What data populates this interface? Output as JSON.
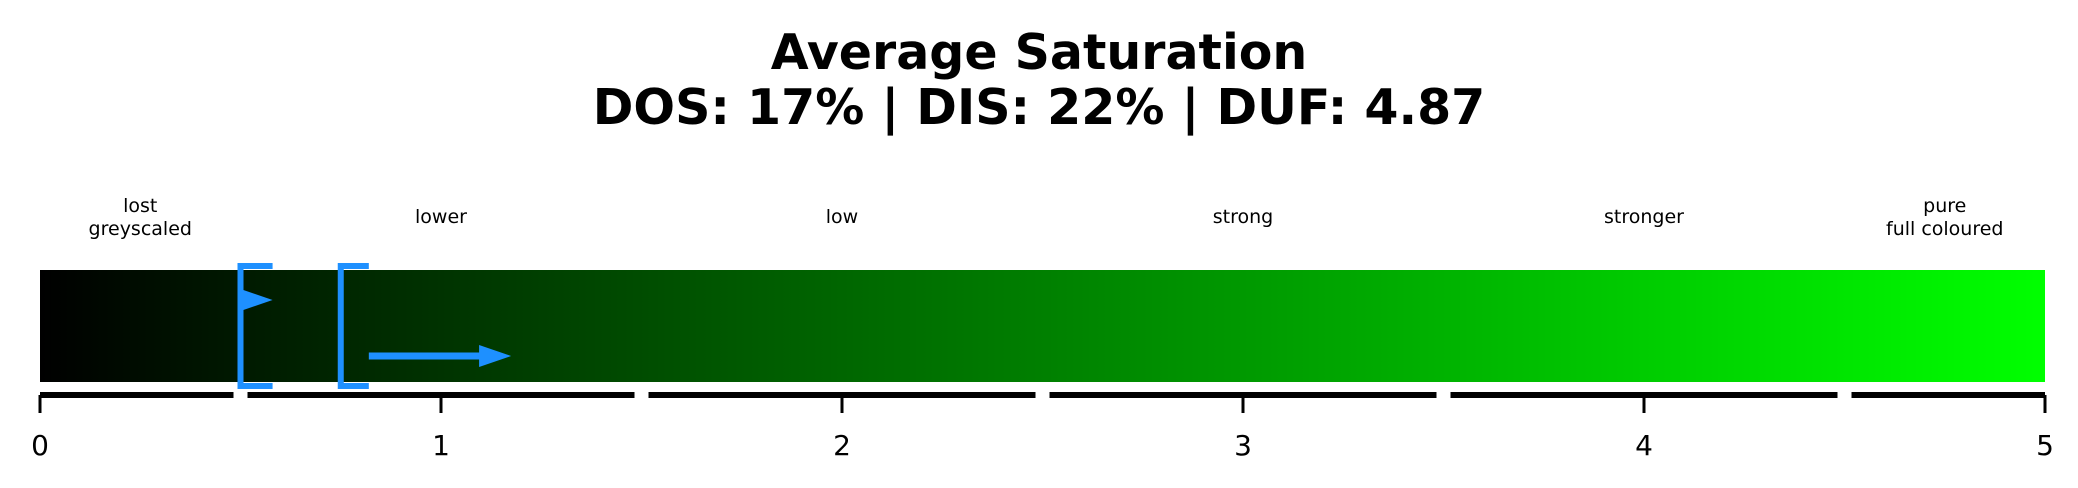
{
  "chart_data": {
    "type": "gauge",
    "title_line1": "Average Saturation",
    "title_line2": "DOS: 17% | DIS: 22% | DUF: 4.87",
    "xlim": [
      0,
      5
    ],
    "ticks": [
      "0",
      "1",
      "2",
      "3",
      "4",
      "5"
    ],
    "tick_values": [
      0,
      1,
      2,
      3,
      4,
      5
    ],
    "zones": [
      {
        "label_lines": [
          "lost",
          "greyscaled"
        ],
        "from": 0,
        "to": 0.5
      },
      {
        "label_lines": [
          "lower"
        ],
        "from": 0.5,
        "to": 1.5
      },
      {
        "label_lines": [
          "low"
        ],
        "from": 1.5,
        "to": 2.5
      },
      {
        "label_lines": [
          "strong"
        ],
        "from": 2.5,
        "to": 3.5
      },
      {
        "label_lines": [
          "stronger"
        ],
        "from": 3.5,
        "to": 4.5
      },
      {
        "label_lines": [
          "pure",
          "full coloured"
        ],
        "from": 4.5,
        "to": 5
      }
    ],
    "gradient_colors": [
      "#000000",
      "#00ff00"
    ],
    "markers": [
      {
        "name": "DOS",
        "value": 0.85,
        "arrow_to": 0.85
      },
      {
        "name": "DIS",
        "value": 1.1,
        "arrow_to": 1.1
      }
    ],
    "marker_color": "#1e90ff",
    "bracket_ranges": [
      [
        0.5,
        0.58
      ],
      [
        0.75,
        0.82
      ]
    ],
    "grid": false
  }
}
